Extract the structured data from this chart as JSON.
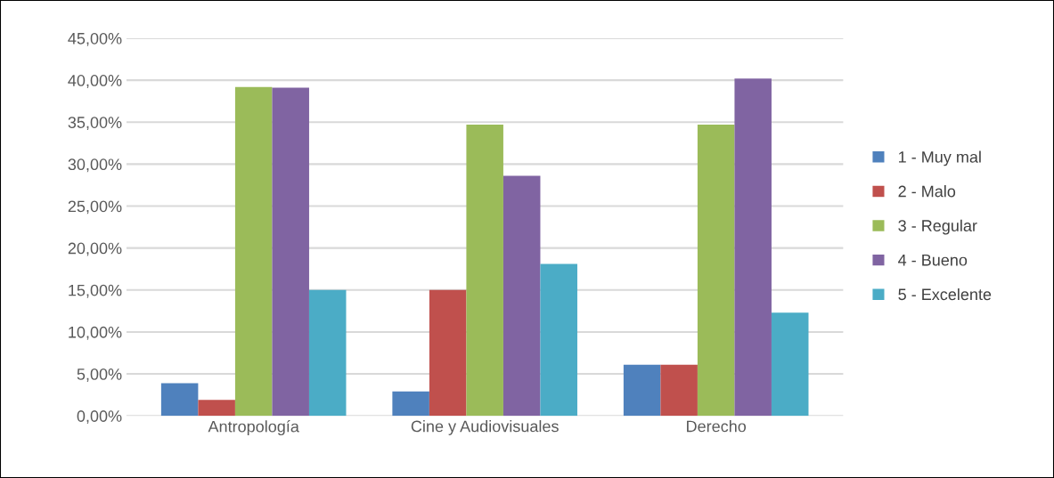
{
  "chart_data": {
    "type": "bar",
    "categories": [
      "Antropología",
      "Cine y Audiovisuales",
      "Derecho"
    ],
    "series": [
      {
        "name": "1 - Muy mal",
        "color": "#4f81bd",
        "values": [
          3.9,
          2.9,
          6.1
        ]
      },
      {
        "name": "2 - Malo",
        "color": "#c0504d",
        "values": [
          1.9,
          15.0,
          6.1
        ]
      },
      {
        "name": "3 - Regular",
        "color": "#9bbb59",
        "values": [
          39.2,
          34.7,
          34.7
        ]
      },
      {
        "name": "4 - Bueno",
        "color": "#8064a2",
        "values": [
          39.1,
          28.6,
          40.2
        ]
      },
      {
        "name": "5 - Excelente",
        "color": "#4bacc6",
        "values": [
          15.0,
          18.1,
          12.3
        ]
      }
    ],
    "ylim": [
      0,
      45
    ],
    "yticks": [
      {
        "value": 0,
        "label": "0,00%"
      },
      {
        "value": 5,
        "label": "5,00%"
      },
      {
        "value": 10,
        "label": "10,00%"
      },
      {
        "value": 15,
        "label": "15,00%"
      },
      {
        "value": 20,
        "label": "20,00%"
      },
      {
        "value": 25,
        "label": "25,00%"
      },
      {
        "value": 30,
        "label": "30,00%"
      },
      {
        "value": 35,
        "label": "35,00%"
      },
      {
        "value": 40,
        "label": "40,00%"
      },
      {
        "value": 45,
        "label": "45,00%"
      }
    ],
    "grid": "y",
    "legend": "right"
  }
}
